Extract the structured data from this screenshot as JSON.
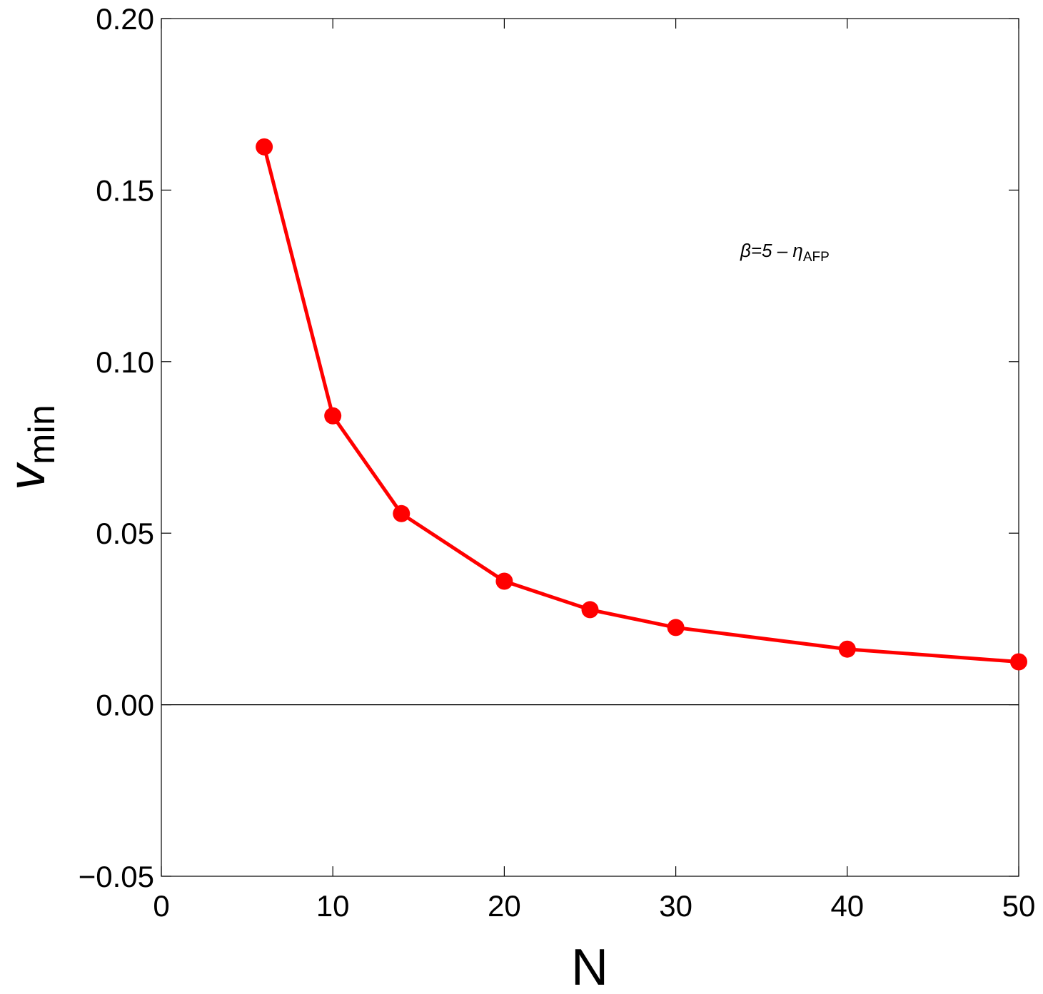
{
  "chart_data": {
    "type": "line",
    "xlabel": "N",
    "ylabel": "v",
    "ylabel_sub": "min",
    "annotation": "β=5 – η",
    "annotation_sub": "AFP",
    "x": [
      6,
      10,
      14,
      20,
      25,
      30,
      40,
      50
    ],
    "series": [
      {
        "color": "#ff0000",
        "values": [
          0.1626,
          0.0842,
          0.0557,
          0.036,
          0.0277,
          0.0225,
          0.0162,
          0.0125
        ]
      }
    ],
    "xlim": [
      0,
      50
    ],
    "xticks": [
      0,
      10,
      20,
      30,
      40,
      50
    ],
    "ylim": [
      -0.05,
      0.2
    ],
    "yticks": [
      {
        "value": -0.05,
        "label": "−0.05"
      },
      {
        "value": 0,
        "label": "0.00"
      },
      {
        "value": 0.05,
        "label": "0.05"
      },
      {
        "value": 0.1,
        "label": "0.10"
      },
      {
        "value": 0.15,
        "label": "0.15"
      },
      {
        "value": 0.2,
        "label": "0.20"
      }
    ],
    "grid": false
  }
}
